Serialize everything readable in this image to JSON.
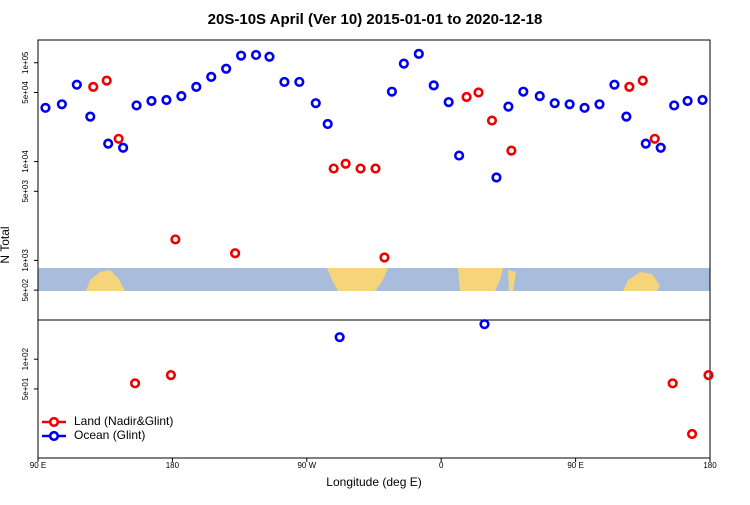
{
  "chart_data": {
    "type": "scatter",
    "title": "20S-10S April (Ver 10)   2015-01-01 to 2020-12-18",
    "xlabel": "Longitude (deg E)",
    "ylabel": "N Total",
    "xlim": [
      90,
      540
    ],
    "xticks": [
      {
        "value": 90,
        "label": "90 E"
      },
      180,
      {
        "value": 270,
        "label": "90 W"
      },
      {
        "value": 360,
        "label": "0"
      },
      {
        "value": 450,
        "label": "90 E"
      },
      {
        "value": 540,
        "label": "180"
      }
    ],
    "ylim": [
      10,
      170000
    ],
    "log_y": true,
    "yticks": [
      {
        "value": 100000,
        "label": "1e+05"
      },
      {
        "value": 50000,
        "label": "5e+04"
      },
      {
        "value": 10000,
        "label": "1e+04"
      },
      {
        "value": 5000,
        "label": "5e+03"
      },
      {
        "value": 1000,
        "label": "1e+03"
      },
      {
        "value": 500,
        "label": "5e+02"
      },
      {
        "value": 100,
        "label": "1e+02"
      },
      {
        "value": 50,
        "label": "5e+01"
      }
    ],
    "legend": "bottom-left",
    "series": [
      {
        "name": "Land (Nadir&Glint)",
        "color": "#ee0000",
        "x": [
          127,
          136,
          144,
          155,
          179,
          182,
          222,
          288,
          296,
          306,
          316,
          322,
          377,
          385,
          394,
          407,
          486,
          495,
          503,
          515,
          528,
          539
        ],
        "values": [
          57000,
          66000,
          17000,
          57,
          69,
          1630,
          1180,
          8500,
          9500,
          8500,
          8500,
          1070,
          45000,
          50000,
          26000,
          12900,
          57000,
          66000,
          17000,
          57,
          17.5,
          69
        ]
      },
      {
        "name": "Ocean (Glint)",
        "color": "#0000ee",
        "x": [
          95,
          106,
          116,
          125,
          137,
          147,
          156,
          166,
          176,
          186,
          196,
          206,
          216,
          226,
          236,
          245,
          255,
          265,
          276,
          284,
          292,
          327,
          335,
          345,
          355,
          365,
          372,
          389,
          397,
          405,
          415,
          426,
          436,
          446,
          456,
          466,
          476,
          484,
          497,
          507,
          516,
          525,
          535
        ],
        "values": [
          35000,
          38000,
          60000,
          28500,
          15200,
          13800,
          37000,
          41000,
          42000,
          46000,
          57000,
          72000,
          87000,
          118000,
          120000,
          115000,
          64000,
          64000,
          39000,
          24000,
          167,
          51000,
          98000,
          123000,
          59000,
          40000,
          11500,
          226,
          6900,
          36000,
          51000,
          46000,
          39000,
          38000,
          35000,
          38000,
          60000,
          28500,
          15200,
          13800,
          37000,
          41000,
          42000
        ]
      }
    ]
  }
}
